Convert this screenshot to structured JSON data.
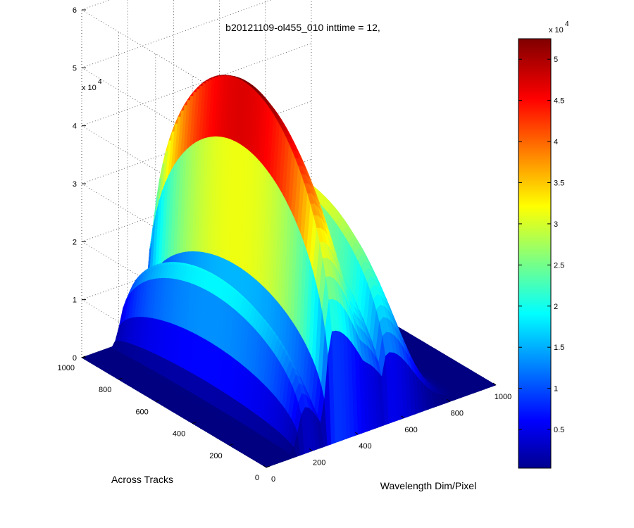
{
  "chart_data": {
    "type": "surface",
    "title": "b20121109-ol455_010 inttime = 12,",
    "xlabel": "Wavelength Dim/Pixel",
    "ylabel": "Across Tracks",
    "zlabel": "",
    "x_ticks": [
      "0",
      "200",
      "400",
      "600",
      "800",
      "1000"
    ],
    "y_ticks": [
      "0",
      "200",
      "400",
      "600",
      "800",
      "1000"
    ],
    "z_ticks": [
      "0",
      "1",
      "2",
      "3",
      "4",
      "5",
      "6"
    ],
    "z_multiplier": "x 10",
    "z_exponent": "4",
    "xlim": [
      0,
      1000
    ],
    "ylim": [
      0,
      1000
    ],
    "zlim": [
      0,
      60000
    ],
    "grid": true,
    "colormap": "jet",
    "colorbar": {
      "ticks": [
        "0.5",
        "1",
        "1.5",
        "2",
        "2.5",
        "3",
        "3.5",
        "4",
        "4.5",
        "5"
      ],
      "multiplier": "x 10",
      "exponent": "4",
      "range": [
        300,
        52500
      ]
    },
    "peaks": [
      {
        "wavelength_pixel": 300,
        "across_track_range": [
          0,
          1000
        ],
        "max": 53000
      },
      {
        "wavelength_pixel": 420,
        "across_track_range": [
          0,
          1000
        ],
        "max": 33000
      },
      {
        "wavelength_pixel": 540,
        "across_track_range": [
          0,
          1000
        ],
        "max": 33000
      },
      {
        "wavelength_pixel": 180,
        "across_track_range": [
          0,
          1000
        ],
        "max": 21000
      }
    ]
  }
}
